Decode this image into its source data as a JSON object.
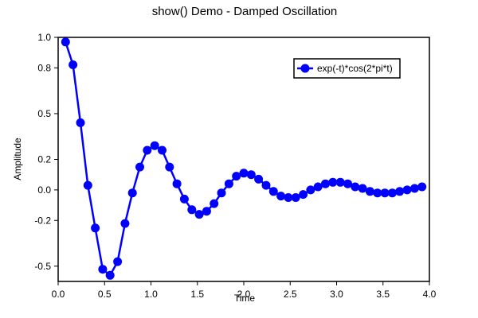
{
  "chart_data": {
    "type": "line",
    "title": "show() Demo - Damped Oscillation",
    "xlabel": "Time",
    "ylabel": "Amplitude",
    "xlim": [
      0.0,
      4.0
    ],
    "ylim": [
      -0.6,
      1.0
    ],
    "x_ticks": [
      0.0,
      0.5,
      1.0,
      1.5,
      2.0,
      2.5,
      3.0,
      3.5,
      4.0
    ],
    "x_tick_labels": [
      "0.0",
      "0.5",
      "1.0",
      "1.5",
      "2.0",
      "2.5",
      "3.0",
      "3.5",
      "4.0"
    ],
    "y_ticks": [
      -0.5,
      -0.2,
      0.0,
      0.2,
      0.5,
      0.8,
      1.0
    ],
    "y_tick_labels": [
      "-0.5",
      "-0.2",
      "0.0",
      "0.2",
      "0.5",
      "0.8",
      "1.0"
    ],
    "grid": false,
    "legend": {
      "position": "top-right",
      "entries": [
        "exp(-t)*cos(2*pi*t)"
      ]
    },
    "series": [
      {
        "name": "exp(-t)*cos(2*pi*t)",
        "color": "#0000ff",
        "marker": "circle",
        "x": [
          0.08,
          0.16,
          0.24,
          0.32,
          0.4,
          0.48,
          0.56,
          0.64,
          0.72,
          0.8,
          0.88,
          0.96,
          1.04,
          1.12,
          1.2,
          1.28,
          1.36,
          1.44,
          1.52,
          1.6,
          1.68,
          1.76,
          1.84,
          1.92,
          2.0,
          2.08,
          2.16,
          2.24,
          2.32,
          2.4,
          2.48,
          2.56,
          2.64,
          2.72,
          2.8,
          2.88,
          2.96,
          3.04,
          3.12,
          3.2,
          3.28,
          3.36,
          3.44,
          3.52,
          3.6,
          3.68,
          3.76,
          3.84,
          3.92
        ],
        "values": [
          0.97,
          0.82,
          0.44,
          0.03,
          -0.25,
          -0.52,
          -0.56,
          -0.47,
          -0.22,
          -0.02,
          0.15,
          0.26,
          0.29,
          0.26,
          0.15,
          0.04,
          -0.06,
          -0.13,
          -0.16,
          -0.14,
          -0.09,
          -0.02,
          0.04,
          0.09,
          0.11,
          0.1,
          0.07,
          0.03,
          -0.01,
          -0.04,
          -0.05,
          -0.05,
          -0.03,
          0.0,
          0.02,
          0.04,
          0.05,
          0.05,
          0.04,
          0.02,
          0.01,
          -0.01,
          -0.02,
          -0.02,
          -0.02,
          -0.01,
          0.0,
          0.01,
          0.02
        ]
      }
    ]
  }
}
